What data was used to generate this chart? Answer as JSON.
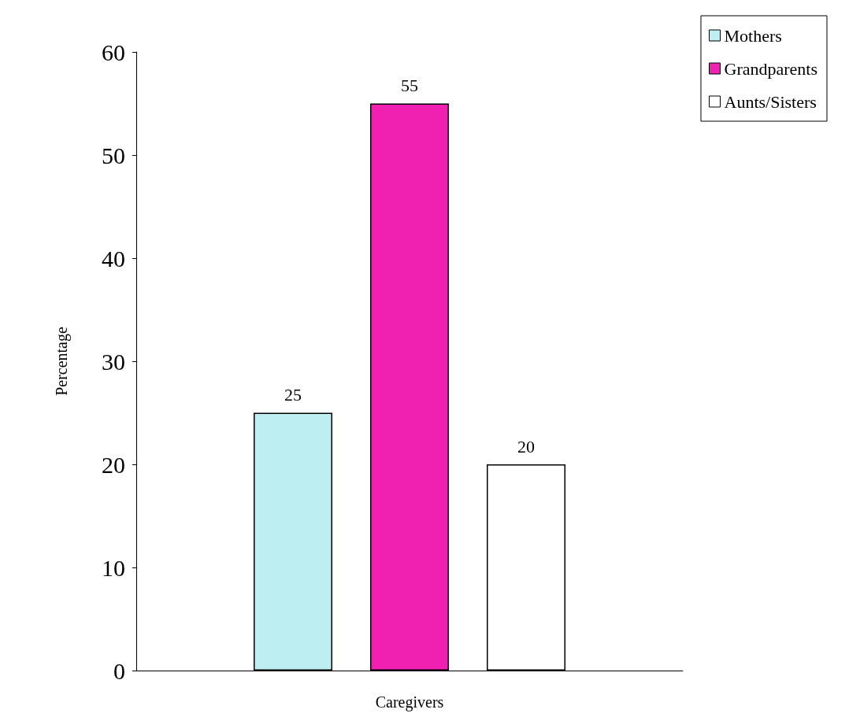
{
  "chart_data": {
    "type": "bar",
    "xlabel": "Caregivers",
    "ylabel": "Percentage",
    "categories": [
      null
    ],
    "series": [
      {
        "name": "Mothers",
        "color": "#bdeef2",
        "values": [
          25
        ]
      },
      {
        "name": "Grandparents",
        "color": "#f020b0",
        "values": [
          55
        ]
      },
      {
        "name": "Aunts/Sisters",
        "color": "#ffffff",
        "values": [
          20
        ]
      }
    ],
    "ylim": [
      0,
      60
    ],
    "yticks": [
      0,
      10,
      20,
      30,
      40,
      50,
      60
    ],
    "grid": false,
    "legend": "top right",
    "data_labels": true
  }
}
